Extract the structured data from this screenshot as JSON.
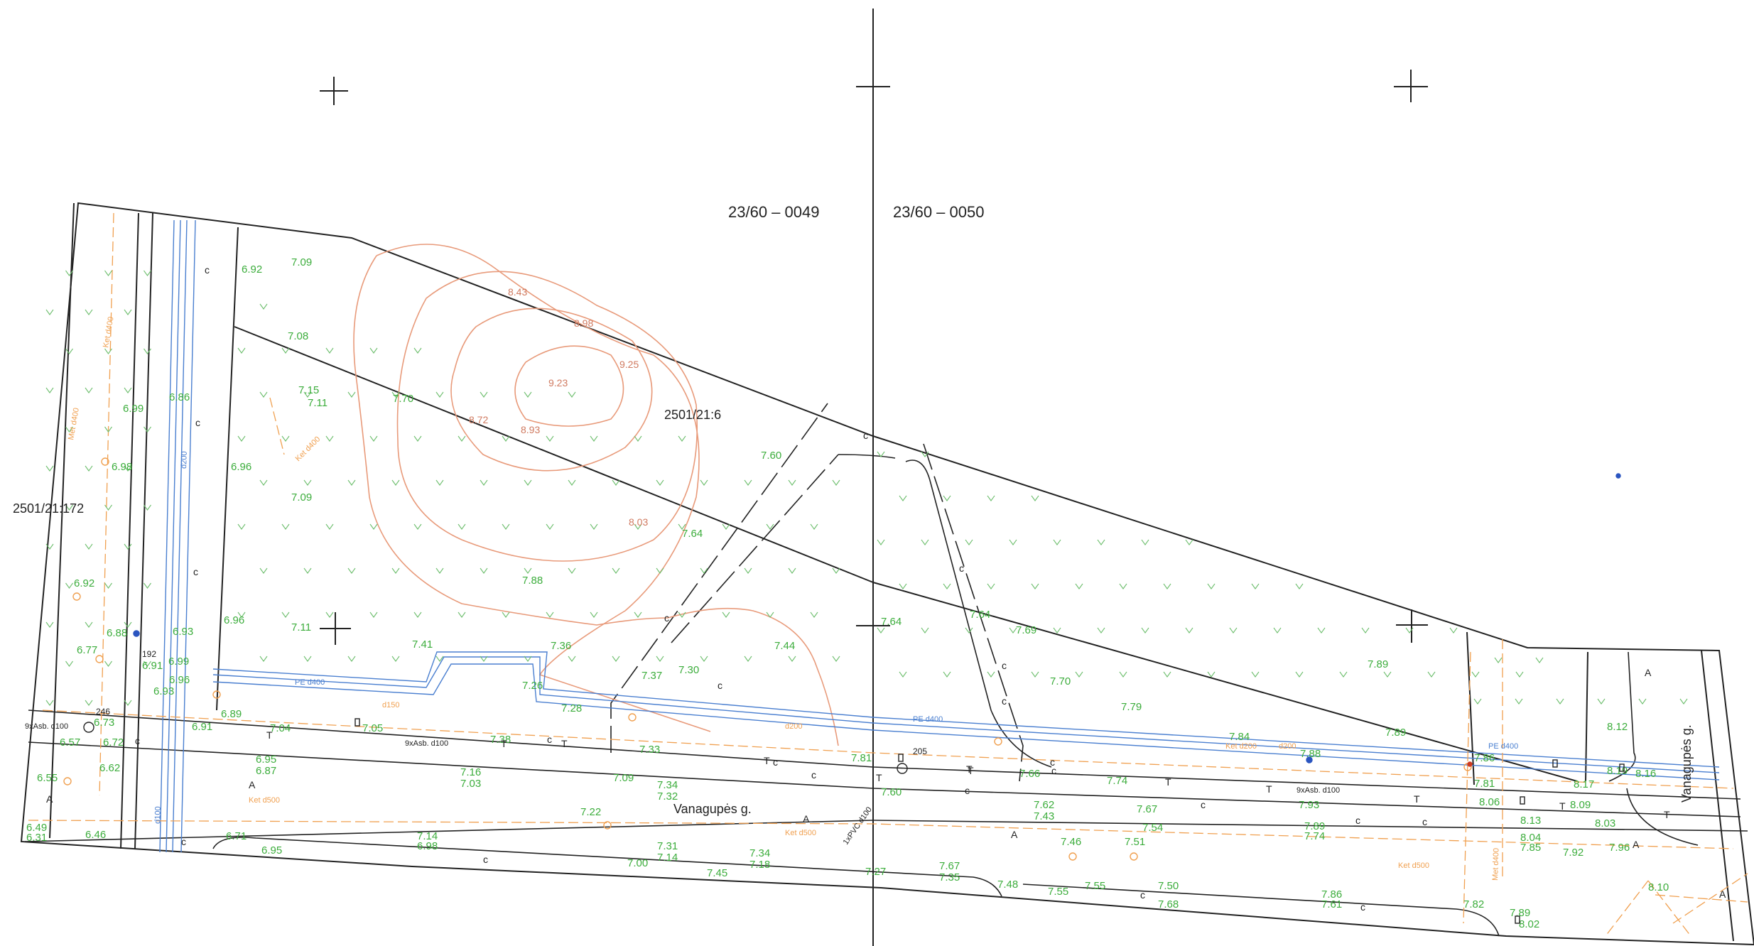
{
  "sheets": {
    "left": "23/60 – 0049",
    "right": "23/60 – 0050"
  },
  "parcels": {
    "left_parcel": "2501/21:172",
    "center_parcel": "2501/21:6"
  },
  "streets": {
    "main": "Vanagupės g.",
    "side": "Vanagupės g."
  },
  "contours": {
    "c1": "8.43",
    "c2": "8.98",
    "c3": "9.25",
    "c4": "9.23",
    "c5": "8.72",
    "c6": "8.93",
    "c7": "8.03"
  },
  "spot_elevations": {
    "e1": "7.09",
    "e2": "6.92",
    "e3": "7.08",
    "e4": "7.15",
    "e5": "7.11",
    "e6": "7.70",
    "e7": "6.99",
    "e8": "6.86",
    "e9": "6.98",
    "e10": "6.96",
    "e11": "7.09",
    "e12": "7.60",
    "e13": "7.64",
    "e14": "7.88",
    "e15": "6.92",
    "e16": "6.96",
    "e17": "7.11",
    "e18": "7.41",
    "e19": "7.36",
    "e20": "7.44",
    "e21": "7.64",
    "e22": "7.64",
    "e23": "7.69",
    "e24": "7.89",
    "e25": "7.70",
    "e26": "7.79",
    "e27": "6.88",
    "e28": "6.93",
    "e29": "6.77",
    "e30": "6.99",
    "e31": "6.91",
    "e32": "6.96",
    "e33": "6.93",
    "e34": "6.89",
    "e35": "6.91",
    "e36": "7.05",
    "e37": "7.37",
    "e38": "7.30",
    "e39": "7.26",
    "e40": "7.28",
    "e41": "7.04",
    "e42": "6.57",
    "e43": "6.72",
    "e44": "6.62",
    "e45": "6.55",
    "e46": "6.95",
    "e47": "6.87",
    "e48": "7.16",
    "e49": "7.03",
    "e50": "7.38",
    "e51": "7.33",
    "e52": "7.09",
    "e53": "7.34",
    "e54": "7.32",
    "e55": "7.22",
    "e56": "6.49",
    "e57": "6.46",
    "e58": "6.71",
    "e59": "6.95",
    "e60": "7.14",
    "e61": "6.98",
    "e62": "7.31",
    "e63": "7.14",
    "e64": "7.00",
    "e65": "7.45",
    "e66": "7.34",
    "e67": "7.18",
    "e68": "7.27",
    "e69": "7.67",
    "e70": "7.35",
    "e71": "7.48",
    "e72": "7.55",
    "e73": "7.50",
    "e74": "7.68",
    "e75": "7.55",
    "e76": "7.62",
    "e77": "7.43",
    "e78": "7.46",
    "e79": "7.51",
    "e80": "7.67",
    "e81": "7.54",
    "e82": "7.74",
    "e83": "7.89",
    "e84": "7.74",
    "e85": "7.93",
    "e86": "7.66",
    "e87": "7.84",
    "e88": "7.88",
    "e89": "7.89",
    "e90": "7.86",
    "e91": "7.81",
    "e92": "8.06",
    "e93": "8.09",
    "e94": "8.03",
    "e95": "8.13",
    "e96": "8.04",
    "e97": "7.85",
    "e98": "7.92",
    "e99": "7.96",
    "e100": "8.17",
    "e101": "8.19",
    "e102": "8.16",
    "e103": "8.12",
    "e104": "7.82",
    "e105": "7.89",
    "e106": "8.02",
    "e107": "8.10",
    "e108": "7.86",
    "e109": "7.61",
    "e110": "7.60",
    "e111": "7.81",
    "e112": "6.73",
    "e113": "6.31"
  },
  "utilities": {
    "u1": "9xAsb. d100",
    "u2": "9xAsb. d100",
    "u3": "9xAsb. d100",
    "u4": "PE d400",
    "u5": "PE d400",
    "u6": "PE d400",
    "u7": "Ket d500",
    "u8": "Ket d500",
    "u9": "Ket d500",
    "u10": "Met d400",
    "u11": "Met d400",
    "u12": "Ket d400",
    "u13": "Ket d400",
    "u14": "1xPVC d100",
    "u15": "d100",
    "u16": "d200",
    "u17": "d150",
    "u18": "d200",
    "u19": "Ket d200",
    "u20": "d200"
  },
  "markers": {
    "m246": "246",
    "m205": "205",
    "m192": "192"
  },
  "codes": {
    "c": "c",
    "A": "A",
    "T": "T"
  }
}
